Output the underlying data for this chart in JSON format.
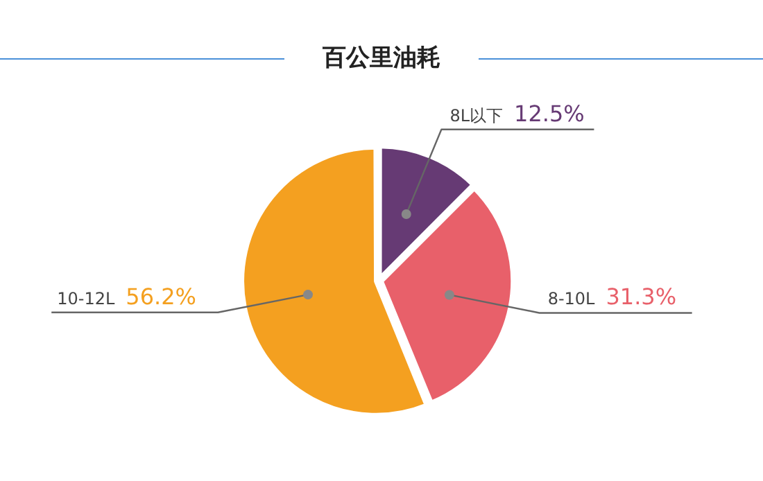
{
  "chart_data": {
    "type": "pie",
    "title": "百公里油耗",
    "categories": [
      "8L以下",
      "8-10L",
      "10-12L"
    ],
    "values": [
      12.5,
      31.3,
      56.2
    ],
    "colors": [
      "#663a74",
      "#e8606a",
      "#f4a020"
    ],
    "value_labels": [
      "12.5%",
      "31.3%",
      "56.2%"
    ],
    "legend": false
  }
}
